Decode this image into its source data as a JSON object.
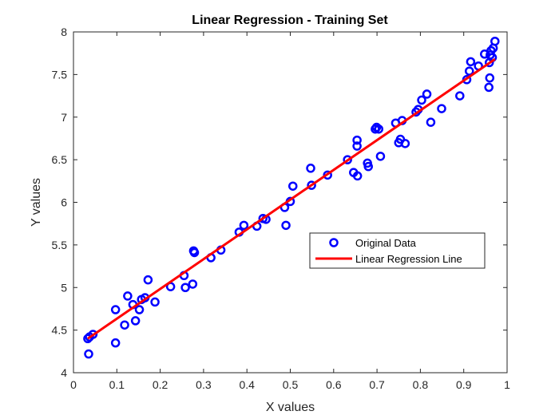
{
  "chart_data": {
    "type": "scatter",
    "title": "Linear Regression - Training Set",
    "xlabel": "X values",
    "ylabel": "Y values",
    "xlim": [
      0,
      1
    ],
    "ylim": [
      4,
      8
    ],
    "xticks": [
      0,
      0.1,
      0.2,
      0.3,
      0.4,
      0.5,
      0.6,
      0.7,
      0.8,
      0.9,
      1
    ],
    "yticks": [
      4,
      4.5,
      5,
      5.5,
      6,
      6.5,
      7,
      7.5,
      8
    ],
    "xtick_labels": [
      "0",
      "0.1",
      "0.2",
      "0.3",
      "0.4",
      "0.5",
      "0.6",
      "0.7",
      "0.8",
      "0.9",
      "1"
    ],
    "ytick_labels": [
      "4",
      "4.5",
      "5",
      "5.5",
      "6",
      "6.5",
      "7",
      "7.5",
      "8"
    ],
    "grid": false,
    "legend_position": "center-right",
    "series": [
      {
        "name": "Original Data",
        "type": "scatter",
        "marker": "circle-open",
        "color": "#0000ff",
        "points": [
          [
            0.033,
            4.4
          ],
          [
            0.037,
            4.42
          ],
          [
            0.045,
            4.45
          ],
          [
            0.035,
            4.22
          ],
          [
            0.097,
            4.74
          ],
          [
            0.097,
            4.35
          ],
          [
            0.118,
            4.56
          ],
          [
            0.125,
            4.9
          ],
          [
            0.137,
            4.8
          ],
          [
            0.143,
            4.61
          ],
          [
            0.152,
            4.74
          ],
          [
            0.157,
            4.86
          ],
          [
            0.165,
            4.88
          ],
          [
            0.172,
            5.09
          ],
          [
            0.188,
            4.83
          ],
          [
            0.224,
            5.01
          ],
          [
            0.255,
            5.14
          ],
          [
            0.258,
            5.0
          ],
          [
            0.275,
            5.04
          ],
          [
            0.277,
            5.43
          ],
          [
            0.279,
            5.41
          ],
          [
            0.317,
            5.35
          ],
          [
            0.34,
            5.44
          ],
          [
            0.382,
            5.65
          ],
          [
            0.393,
            5.73
          ],
          [
            0.423,
            5.72
          ],
          [
            0.437,
            5.81
          ],
          [
            0.444,
            5.8
          ],
          [
            0.487,
            5.94
          ],
          [
            0.49,
            5.73
          ],
          [
            0.5,
            6.01
          ],
          [
            0.506,
            6.19
          ],
          [
            0.547,
            6.4
          ],
          [
            0.549,
            6.2
          ],
          [
            0.586,
            6.32
          ],
          [
            0.632,
            6.5
          ],
          [
            0.646,
            6.35
          ],
          [
            0.654,
            6.66
          ],
          [
            0.654,
            6.73
          ],
          [
            0.655,
            6.31
          ],
          [
            0.678,
            6.46
          ],
          [
            0.68,
            6.42
          ],
          [
            0.696,
            6.86
          ],
          [
            0.699,
            6.88
          ],
          [
            0.704,
            6.86
          ],
          [
            0.708,
            6.54
          ],
          [
            0.743,
            6.93
          ],
          [
            0.75,
            6.7
          ],
          [
            0.754,
            6.74
          ],
          [
            0.758,
            6.96
          ],
          [
            0.765,
            6.69
          ],
          [
            0.79,
            7.06
          ],
          [
            0.795,
            7.09
          ],
          [
            0.803,
            7.2
          ],
          [
            0.815,
            7.27
          ],
          [
            0.824,
            6.94
          ],
          [
            0.849,
            7.1
          ],
          [
            0.891,
            7.25
          ],
          [
            0.907,
            7.44
          ],
          [
            0.913,
            7.54
          ],
          [
            0.916,
            7.65
          ],
          [
            0.934,
            7.6
          ],
          [
            0.948,
            7.74
          ],
          [
            0.958,
            7.35
          ],
          [
            0.959,
            7.64
          ],
          [
            0.96,
            7.46
          ],
          [
            0.961,
            7.73
          ],
          [
            0.963,
            7.78
          ],
          [
            0.966,
            7.7
          ],
          [
            0.968,
            7.81
          ],
          [
            0.972,
            7.89
          ]
        ]
      },
      {
        "name": "Linear Regression Line",
        "type": "line",
        "color": "#ff0000",
        "x": [
          0.033,
          0.972
        ],
        "y": [
          4.4,
          7.68
        ]
      }
    ]
  }
}
